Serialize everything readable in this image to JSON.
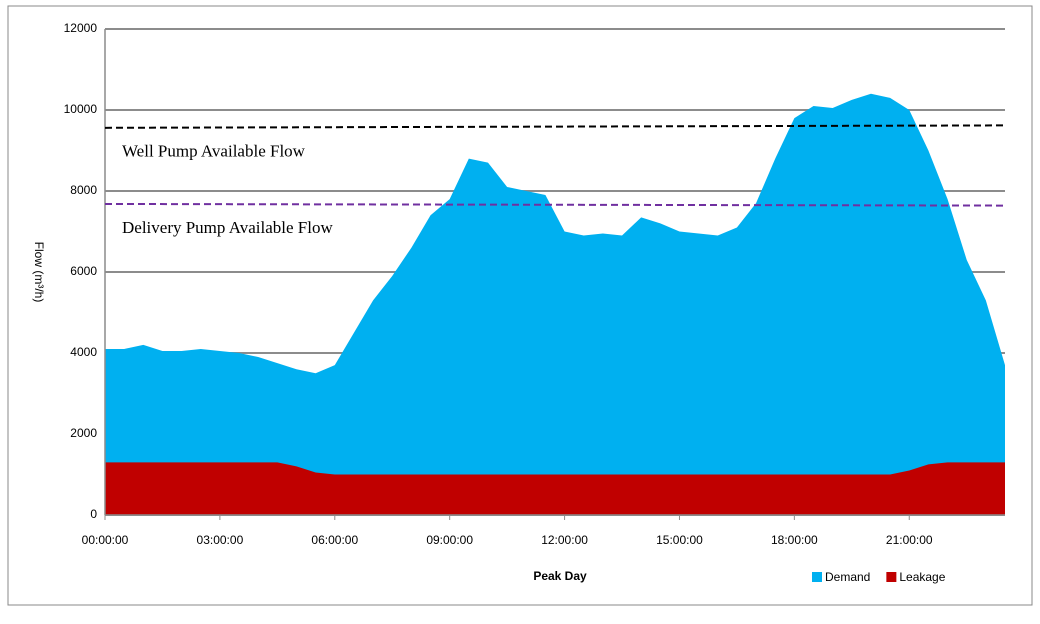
{
  "chart_data": {
    "type": "area",
    "x_label": "Peak Day",
    "y_label": "Flow (m³/h)",
    "categories": [
      "00:00:00",
      null,
      null,
      null,
      null,
      null,
      "03:00:00",
      null,
      null,
      null,
      null,
      null,
      "06:00:00",
      null,
      null,
      null,
      null,
      null,
      "09:00:00",
      null,
      null,
      null,
      null,
      null,
      "12:00:00",
      null,
      null,
      null,
      null,
      null,
      "15:00:00",
      null,
      null,
      null,
      null,
      null,
      "18:00:00",
      null,
      null,
      null,
      null,
      null,
      "21:00:00",
      null,
      null,
      null,
      null,
      null
    ],
    "series": [
      {
        "name": "Demand",
        "color": "#00b0f0",
        "values": [
          4100,
          4100,
          4200,
          4050,
          4050,
          4100,
          4050,
          4000,
          3900,
          3750,
          3600,
          3500,
          3700,
          4500,
          5300,
          5900,
          6600,
          7400,
          7800,
          8800,
          8700,
          8100,
          8000,
          7900,
          7000,
          6900,
          6950,
          6900,
          7350,
          7200,
          7000,
          6950,
          6900,
          7100,
          7700,
          8800,
          9800,
          10100,
          10050,
          10250,
          10400,
          10300,
          10000,
          9000,
          7800,
          6300,
          5300,
          3700
        ]
      },
      {
        "name": "Leakage",
        "color": "#c00000",
        "values": [
          1300,
          1300,
          1300,
          1300,
          1300,
          1300,
          1300,
          1300,
          1300,
          1300,
          1200,
          1050,
          1000,
          1000,
          1000,
          1000,
          1000,
          1000,
          1000,
          1000,
          1000,
          1000,
          1000,
          1000,
          1000,
          1000,
          1000,
          1000,
          1000,
          1000,
          1000,
          1000,
          1000,
          1000,
          1000,
          1000,
          1000,
          1000,
          1000,
          1000,
          1000,
          1000,
          1100,
          1250,
          1300,
          1300,
          1300,
          1300
        ]
      }
    ],
    "reference_lines": [
      {
        "label": "Well Pump Available Flow",
        "color": "#000000",
        "values": [
          9560,
          9620
        ]
      },
      {
        "label": "Delivery Pump Available Flow",
        "color": "#7030a0",
        "values": [
          7680,
          7640
        ]
      }
    ],
    "ylim": [
      0,
      12000
    ],
    "yticks": [
      0,
      2000,
      4000,
      6000,
      8000,
      10000,
      12000
    ],
    "grid": true,
    "legend": "bottom-right"
  }
}
